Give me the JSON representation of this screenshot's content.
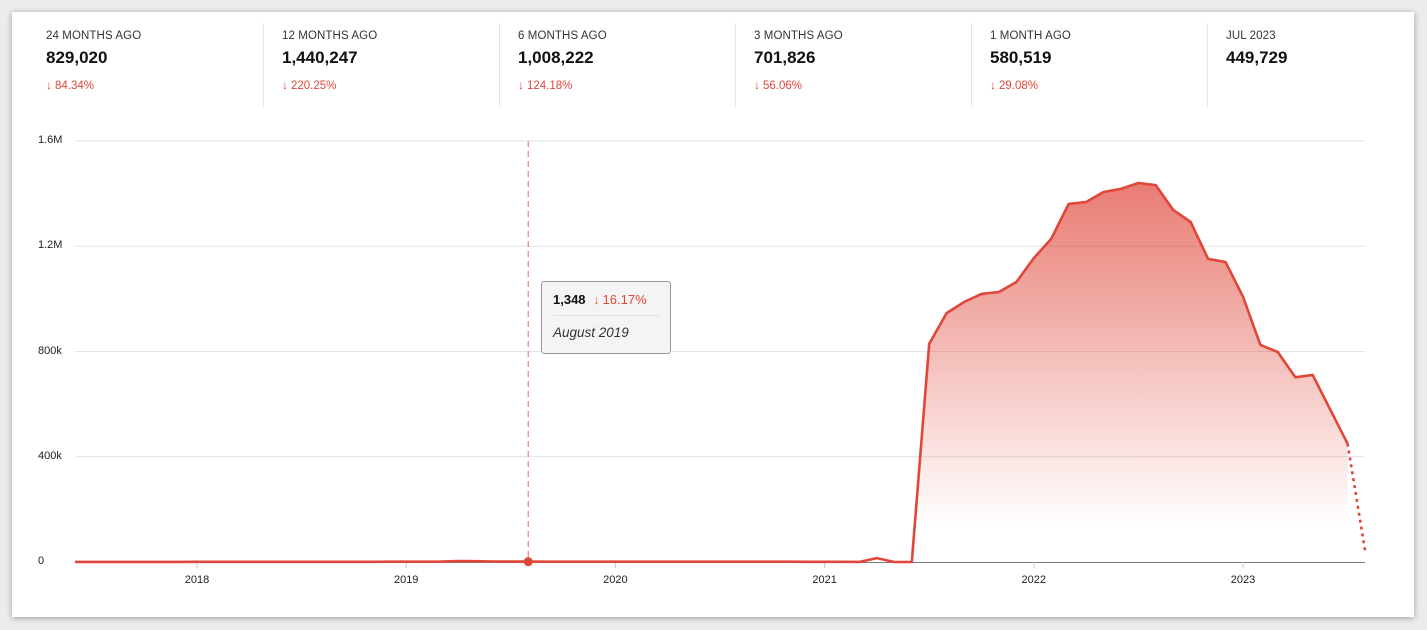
{
  "stats": [
    {
      "label": "24 MONTHS AGO",
      "value": "829,020",
      "change": "84.34%",
      "direction": "down"
    },
    {
      "label": "12 MONTHS AGO",
      "value": "1,440,247",
      "change": "220.25%",
      "direction": "down"
    },
    {
      "label": "6 MONTHS AGO",
      "value": "1,008,222",
      "change": "124.18%",
      "direction": "down"
    },
    {
      "label": "3 MONTHS AGO",
      "value": "701,826",
      "change": "56.06%",
      "direction": "down"
    },
    {
      "label": "1 MONTH AGO",
      "value": "580,519",
      "change": "29.08%",
      "direction": "down"
    },
    {
      "label": "JUL 2023",
      "value": "449,729"
    }
  ],
  "icons": {
    "change_arrow": "arrow-down-icon",
    "arrow_glyph": "↓"
  },
  "tooltip": {
    "value": "1,348",
    "change": "16.17%",
    "direction": "down",
    "date": "August 2019"
  },
  "colors": {
    "accent": "#e0473a",
    "negative": "#e0473a"
  },
  "chart_data": {
    "type": "area",
    "ylim": [
      0,
      1600000
    ],
    "ytick_labels": [
      "0",
      "400k",
      "800k",
      "1.2M",
      "1.6M"
    ],
    "yticks": [
      0,
      400000,
      800000,
      1200000,
      1600000
    ],
    "xtick_labels": [
      "2018",
      "2019",
      "2020",
      "2021",
      "2022",
      "2023"
    ],
    "grid": true,
    "x_start": "2017-06",
    "x_end": "2023-08",
    "partial_last_point": true,
    "highlight": "2019-08",
    "values": [
      500,
      500,
      500,
      500,
      500,
      500,
      500,
      600,
      600,
      600,
      700,
      700,
      700,
      800,
      800,
      800,
      900,
      900,
      1000,
      1000,
      1100,
      1500,
      3500,
      3000,
      2000,
      1608,
      1348,
      1200,
      1100,
      1000,
      1000,
      1000,
      1000,
      1000,
      1000,
      1000,
      1000,
      1000,
      1000,
      1000,
      1000,
      1000,
      900,
      800,
      700,
      500,
      15000,
      0,
      0,
      829020,
      946000,
      988000,
      1019000,
      1026000,
      1064000,
      1155000,
      1228000,
      1361000,
      1368000,
      1406000,
      1418000,
      1440247,
      1432000,
      1338000,
      1292000,
      1152000,
      1140000,
      1008222,
      825000,
      798000,
      701826,
      711000,
      580519,
      449729,
      45000
    ]
  }
}
